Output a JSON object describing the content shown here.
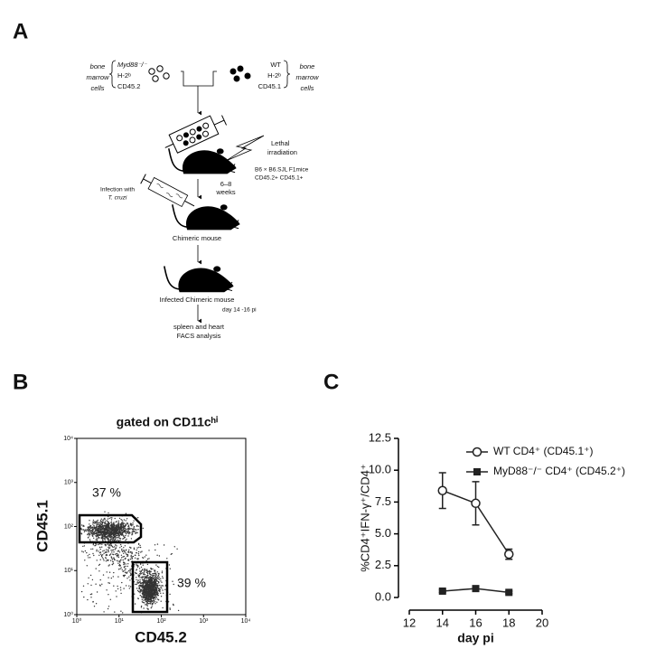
{
  "panel_labels": [
    "A",
    "B",
    "C"
  ],
  "panel_a": {
    "left_cells": [
      "bone",
      "marrow",
      "cells"
    ],
    "left_donor": [
      "Myd88⁻/⁻",
      "H-2ᵇ",
      "CD45.2"
    ],
    "right_donor": [
      "WT",
      "H-2ᵇ",
      "CD45.1"
    ],
    "right_cells": [
      "bone",
      "marrow",
      "cells"
    ],
    "irradiation": [
      "Lethal",
      "irradiation"
    ],
    "recipient": [
      "B6 × B6.SJL F1mice",
      "CD45.2+ CD45.1+"
    ],
    "interval": [
      "6–8",
      "weeks"
    ],
    "infection": [
      "Infection with",
      "T. cruzi"
    ],
    "step1": "Chimeric mouse",
    "step2": "Infected Chimeric mouse",
    "timing": "day 14 -16 pi",
    "readout": [
      "spleen and heart",
      "FACS analysis"
    ]
  },
  "panel_b": {
    "title": "gated on CD11cʰⁱ",
    "x_label": "CD45.2",
    "y_label": "CD45.1",
    "ticks": [
      "10⁰",
      "10¹",
      "10²",
      "10³",
      "10⁴"
    ],
    "gates": [
      "37 %",
      "39 %"
    ]
  },
  "chart_data": {
    "type": "line",
    "x_label": "day pi",
    "y_label": "%CD4⁺IFN-γ⁺/CD4⁺",
    "x": [
      14,
      16,
      18
    ],
    "series": [
      {
        "name": "WT CD4⁺ (CD45.1⁺)",
        "color": "#222222",
        "marker": "open-circle",
        "values": [
          8.4,
          7.4,
          3.4
        ],
        "errors": [
          1.4,
          1.7,
          0.4
        ]
      },
      {
        "name": "MyD88⁻/⁻ CD4⁺ (CD45.2⁺)",
        "color": "#222222",
        "marker": "filled-square",
        "values": [
          0.5,
          0.7,
          0.4
        ],
        "errors": [
          0.1,
          0.1,
          0.1
        ]
      }
    ],
    "xlim": [
      12,
      20
    ],
    "xticks": [
      12,
      14,
      16,
      18,
      20
    ],
    "ylim": [
      0,
      12.5
    ],
    "yticks": [
      {
        "value": 0,
        "label": "0.0"
      },
      2.5,
      {
        "value": 5,
        "label": "5.0"
      },
      7.5,
      {
        "value": 10,
        "label": "10.0"
      },
      12.5
    ]
  }
}
